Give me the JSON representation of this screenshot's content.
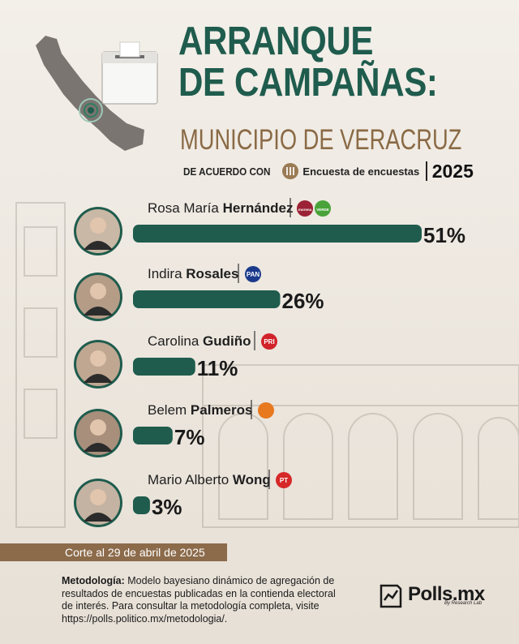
{
  "header": {
    "title_line1": "ARRANQUE",
    "title_line2": "DE CAMPAÑAS:",
    "subtitle": "MUNICIPIO DE VERACRUZ",
    "source_prefix": "DE ACUERDO CON",
    "source_name": "Encuesta de encuestas",
    "year": "2025"
  },
  "chart_data": {
    "type": "bar",
    "orientation": "horizontal",
    "categories": [
      "Rosa María Hernández",
      "Indira Rosales",
      "Carolina Gudiño",
      "Belem Palmeros",
      "Mario Alberto Wong"
    ],
    "values": [
      51,
      26,
      11,
      7,
      3
    ],
    "value_labels": [
      "51%",
      "26%",
      "11%",
      "7%",
      "3%"
    ],
    "name_first": [
      "Rosa María",
      "Indira",
      "Carolina",
      "Belem",
      "Mario Alberto"
    ],
    "name_last": [
      "Hernández",
      "Rosales",
      "Gudiño",
      "Palmeros",
      "Wong"
    ],
    "party_icons": [
      [
        "morena-logo-icon",
        "pvem-logo-icon"
      ],
      [
        "pan-logo-icon"
      ],
      [
        "pri-logo-icon"
      ],
      [
        "mc-logo-icon"
      ],
      [
        "pt-logo-icon"
      ]
    ],
    "party_labels": [
      [
        "morena",
        "VERDE"
      ],
      [
        "PAN"
      ],
      [
        "PRI"
      ],
      [
        ""
      ],
      [
        "PT"
      ]
    ],
    "party_colors": [
      [
        "#9b2335",
        "#4aa33a"
      ],
      [
        "#1b3a8c"
      ],
      [
        "#d1232a"
      ],
      [
        "#e8791e"
      ],
      [
        "#d62828"
      ]
    ],
    "bar_color": "#1f5c4d",
    "xlim": [
      0,
      51
    ],
    "grid": false,
    "legend": "none"
  },
  "footer": {
    "cutoff": "Corte al 29 de abril de 2025",
    "method_label": "Metodología:",
    "method_text": "Modelo bayesiano dinámico de agregación de resultados de encuestas publicadas en la contienda electoral de interés. Para consultar la metodología completa, visite https://polls.politico.mx/metodologia/.",
    "brand": "Polls.mx",
    "brand_sub": "By Research Lab"
  }
}
